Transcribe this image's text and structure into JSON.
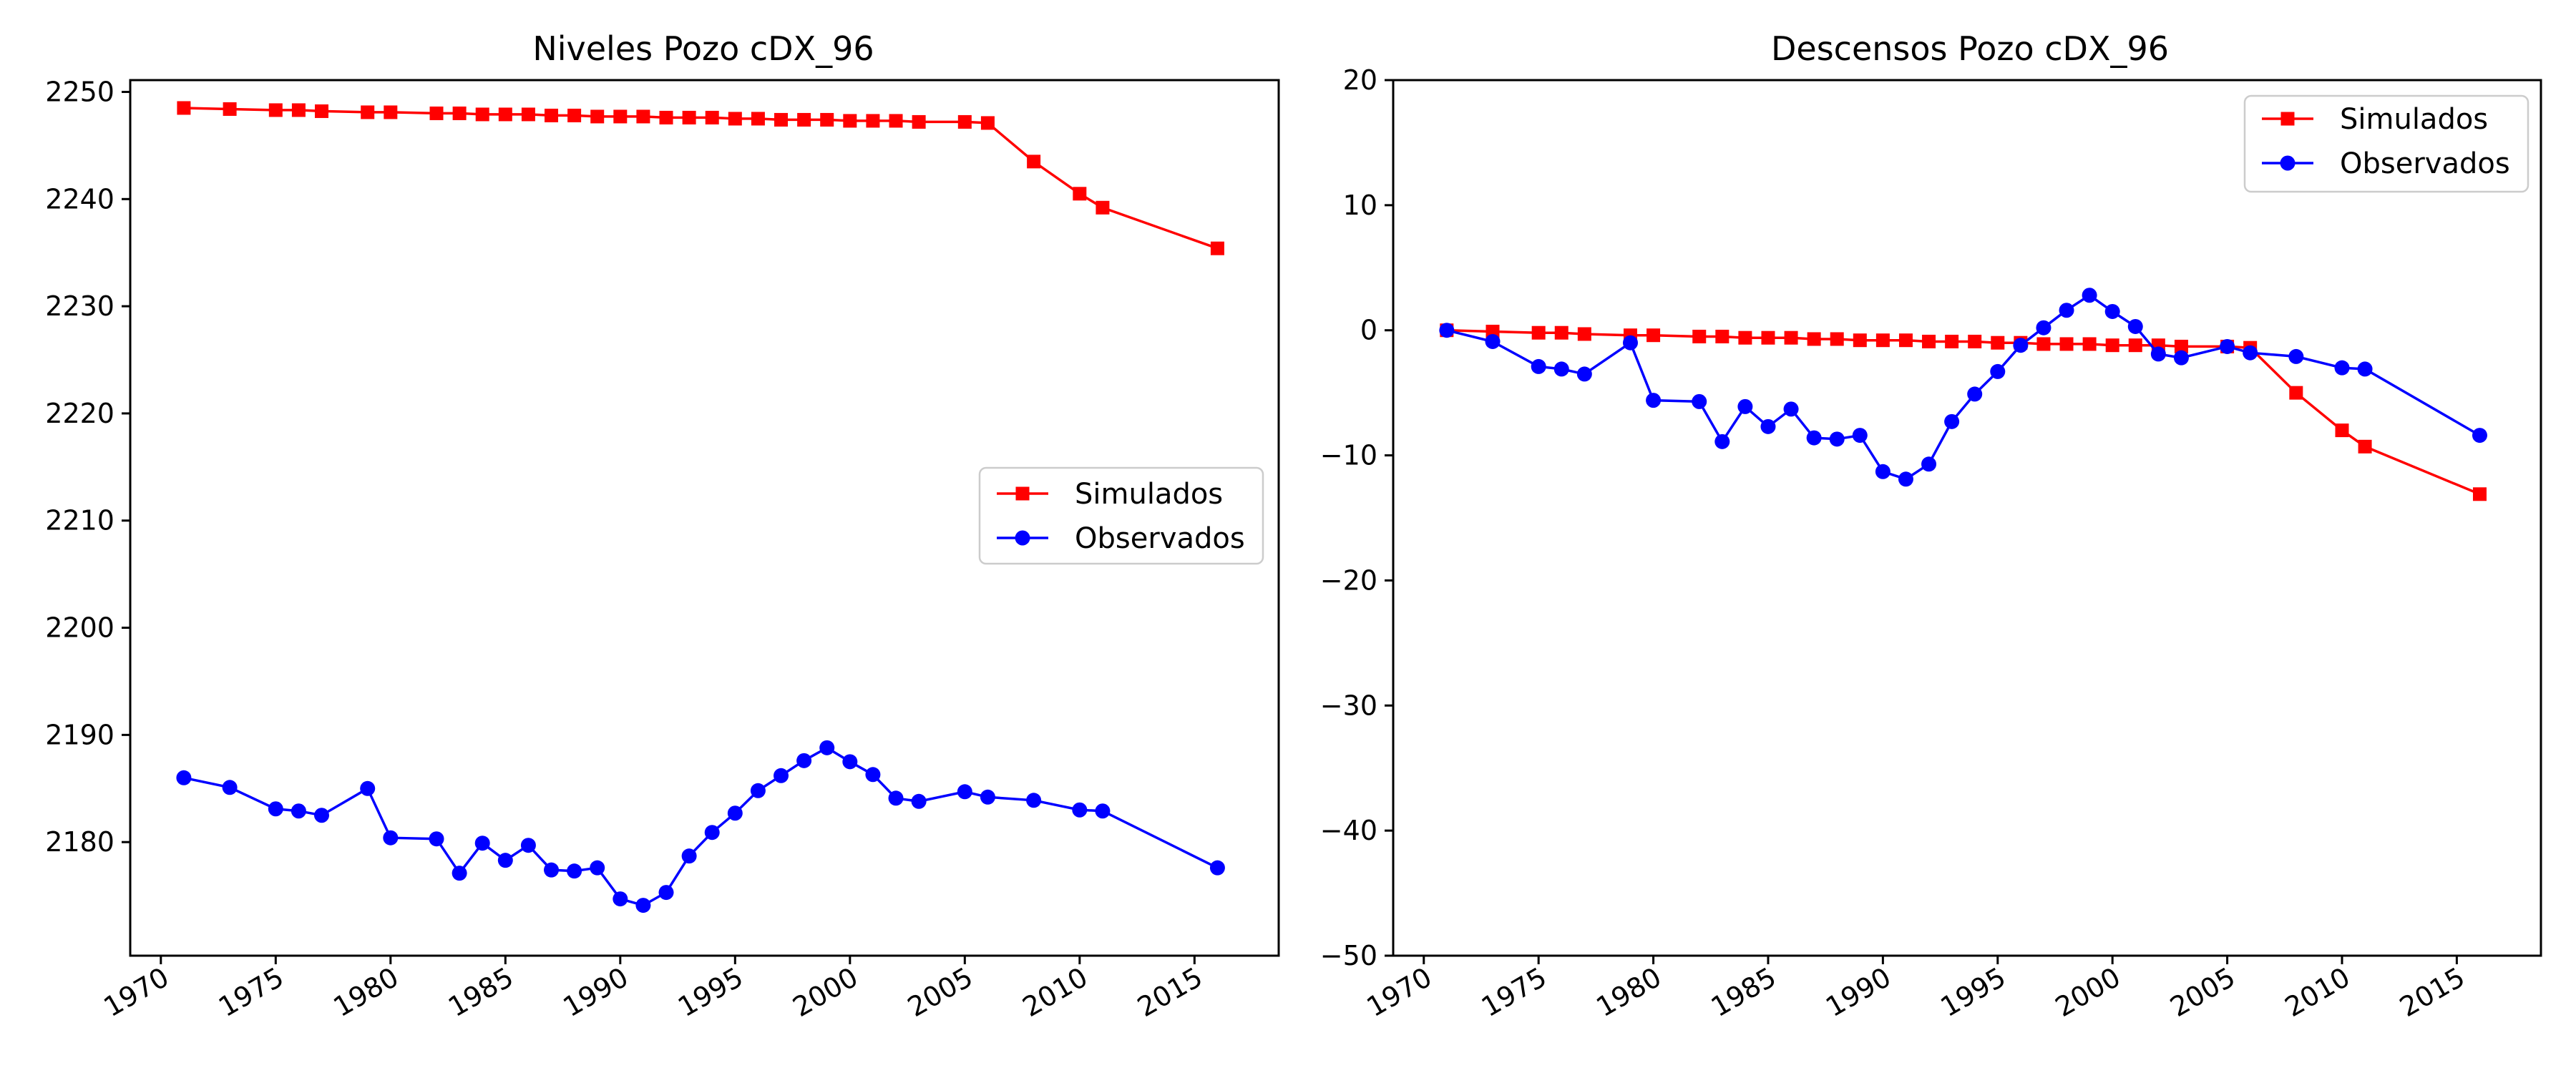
{
  "chart_data": [
    {
      "type": "line",
      "title": "Niveles Pozo cDX_96",
      "xlabel": "",
      "ylabel": "",
      "x_axis": {
        "kind": "date",
        "min": "1968-09-01",
        "max": "2018-09-01",
        "ticks": [
          "1970",
          "1975",
          "1980",
          "1985",
          "1990",
          "1995",
          "2000",
          "2005",
          "2010",
          "2015"
        ]
      },
      "y_axis": {
        "min": 2169.4,
        "max": 2251.1,
        "ticks": [
          2180,
          2190,
          2200,
          2210,
          2220,
          2230,
          2240,
          2250
        ]
      },
      "legend": {
        "position": "center-right",
        "entries": [
          "Simulados",
          "Observados"
        ]
      },
      "grid": false,
      "series": [
        {
          "name": "Simulados",
          "color": "#ff0000",
          "marker": "square",
          "x": [
            "1971-01-01",
            "1973-01-01",
            "1975-01-01",
            "1976-01-01",
            "1977-01-01",
            "1979-01-01",
            "1980-01-01",
            "1982-01-01",
            "1983-01-01",
            "1984-01-01",
            "1985-01-01",
            "1986-01-01",
            "1987-01-01",
            "1988-01-01",
            "1989-01-01",
            "1990-01-01",
            "1991-01-01",
            "1992-01-01",
            "1993-01-01",
            "1994-01-01",
            "1995-01-01",
            "1996-01-01",
            "1997-01-01",
            "1998-01-01",
            "1999-01-01",
            "2000-01-01",
            "2001-01-01",
            "2002-01-01",
            "2003-01-01",
            "2005-01-01",
            "2006-01-01",
            "2008-01-01",
            "2010-01-01",
            "2011-01-01",
            "2016-01-01"
          ],
          "y": [
            2248.5,
            2248.4,
            2248.3,
            2248.3,
            2248.2,
            2248.1,
            2248.1,
            2248.0,
            2248.0,
            2247.9,
            2247.9,
            2247.9,
            2247.8,
            2247.8,
            2247.7,
            2247.7,
            2247.7,
            2247.6,
            2247.6,
            2247.6,
            2247.5,
            2247.5,
            2247.4,
            2247.4,
            2247.4,
            2247.3,
            2247.3,
            2247.3,
            2247.2,
            2247.2,
            2247.1,
            2243.5,
            2240.5,
            2239.2,
            2235.4
          ]
        },
        {
          "name": "Observados",
          "color": "#0000ff",
          "marker": "circle",
          "x": [
            "1971-01-01",
            "1973-01-01",
            "1975-01-01",
            "1976-01-01",
            "1977-01-01",
            "1979-01-01",
            "1980-01-01",
            "1982-01-01",
            "1983-01-01",
            "1984-01-01",
            "1985-01-01",
            "1986-01-01",
            "1987-01-01",
            "1988-01-01",
            "1989-01-01",
            "1990-01-01",
            "1991-01-01",
            "1992-01-01",
            "1993-01-01",
            "1994-01-01",
            "1995-01-01",
            "1996-01-01",
            "1997-01-01",
            "1998-01-01",
            "1999-01-01",
            "2000-01-01",
            "2001-01-01",
            "2002-01-01",
            "2003-01-01",
            "2005-01-01",
            "2006-01-01",
            "2008-01-01",
            "2010-01-01",
            "2011-01-01",
            "2016-01-01"
          ],
          "y": [
            2186.0,
            2185.1,
            2183.1,
            2182.9,
            2182.5,
            2185.0,
            2180.4,
            2180.3,
            2177.1,
            2179.9,
            2178.3,
            2179.7,
            2177.4,
            2177.3,
            2177.6,
            2174.7,
            2174.1,
            2175.3,
            2178.7,
            2180.9,
            2182.7,
            2184.8,
            2186.2,
            2187.6,
            2188.8,
            2187.5,
            2186.3,
            2184.1,
            2183.8,
            2184.7,
            2184.2,
            2183.9,
            2183.0,
            2182.9,
            2177.6
          ]
        }
      ]
    },
    {
      "type": "line",
      "title": "Descensos Pozo cDX_96",
      "xlabel": "",
      "ylabel": "",
      "x_axis": {
        "kind": "date",
        "min": "1968-09-01",
        "max": "2018-09-01",
        "ticks": [
          "1970",
          "1975",
          "1980",
          "1985",
          "1990",
          "1995",
          "2000",
          "2005",
          "2010",
          "2015"
        ]
      },
      "y_axis": {
        "min": -50,
        "max": 20,
        "ticks": [
          -50,
          -40,
          -30,
          -20,
          -10,
          0,
          10,
          20
        ]
      },
      "legend": {
        "position": "top-right",
        "entries": [
          "Simulados",
          "Observados"
        ]
      },
      "grid": false,
      "series": [
        {
          "name": "Simulados",
          "color": "#ff0000",
          "marker": "square",
          "x": [
            "1971-01-01",
            "1973-01-01",
            "1975-01-01",
            "1976-01-01",
            "1977-01-01",
            "1979-01-01",
            "1980-01-01",
            "1982-01-01",
            "1983-01-01",
            "1984-01-01",
            "1985-01-01",
            "1986-01-01",
            "1987-01-01",
            "1988-01-01",
            "1989-01-01",
            "1990-01-01",
            "1991-01-01",
            "1992-01-01",
            "1993-01-01",
            "1994-01-01",
            "1995-01-01",
            "1996-01-01",
            "1997-01-01",
            "1998-01-01",
            "1999-01-01",
            "2000-01-01",
            "2001-01-01",
            "2002-01-01",
            "2003-01-01",
            "2005-01-01",
            "2006-01-01",
            "2008-01-01",
            "2010-01-01",
            "2011-01-01",
            "2016-01-01"
          ],
          "y": [
            0.0,
            -0.1,
            -0.2,
            -0.2,
            -0.3,
            -0.4,
            -0.4,
            -0.5,
            -0.5,
            -0.6,
            -0.6,
            -0.6,
            -0.7,
            -0.7,
            -0.8,
            -0.8,
            -0.8,
            -0.9,
            -0.9,
            -0.9,
            -1.0,
            -1.0,
            -1.1,
            -1.1,
            -1.1,
            -1.2,
            -1.2,
            -1.2,
            -1.3,
            -1.3,
            -1.4,
            -5.0,
            -8.0,
            -9.3,
            -13.1
          ]
        },
        {
          "name": "Observados",
          "color": "#0000ff",
          "marker": "circle",
          "x": [
            "1971-01-01",
            "1973-01-01",
            "1975-01-01",
            "1976-01-01",
            "1977-01-01",
            "1979-01-01",
            "1980-01-01",
            "1982-01-01",
            "1983-01-01",
            "1984-01-01",
            "1985-01-01",
            "1986-01-01",
            "1987-01-01",
            "1988-01-01",
            "1989-01-01",
            "1990-01-01",
            "1991-01-01",
            "1992-01-01",
            "1993-01-01",
            "1994-01-01",
            "1995-01-01",
            "1996-01-01",
            "1997-01-01",
            "1998-01-01",
            "1999-01-01",
            "2000-01-01",
            "2001-01-01",
            "2002-01-01",
            "2003-01-01",
            "2005-01-01",
            "2006-01-01",
            "2008-01-01",
            "2010-01-01",
            "2011-01-01",
            "2016-01-01"
          ],
          "y": [
            0.0,
            -0.9,
            -2.9,
            -3.1,
            -3.5,
            -1.0,
            -5.6,
            -5.7,
            -8.9,
            -6.1,
            -7.7,
            -6.3,
            -8.6,
            -8.7,
            -8.4,
            -11.3,
            -11.9,
            -10.7,
            -7.3,
            -5.1,
            -3.3,
            -1.2,
            0.2,
            1.6,
            2.8,
            1.5,
            0.3,
            -1.9,
            -2.2,
            -1.3,
            -1.8,
            -2.1,
            -3.0,
            -3.1,
            -8.4
          ]
        }
      ]
    }
  ]
}
